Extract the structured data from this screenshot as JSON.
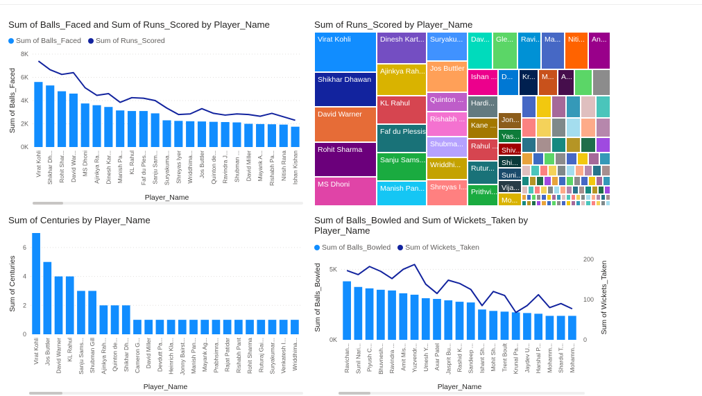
{
  "colors": {
    "bar": "#118DFF",
    "line": "#12239E",
    "grid": "#E1DFDD",
    "axis_text": "#605E5C"
  },
  "chart_data": [
    {
      "id": "c1",
      "type": "bar",
      "title": "Sum of Balls_Faced and Sum of Runs_Scored by Player_Name",
      "legend": [
        "Sum of Balls_Faced",
        "Sum of Runs_Scored"
      ],
      "categories": [
        "Virat Kohli",
        "Shikhar Dh...",
        "Rohit Shar...",
        "David War...",
        "MS Dhoni",
        "Ajinkya Ra...",
        "Dinesh Kar...",
        "Manish Pa...",
        "KL Rahul",
        "Faf du Ples...",
        "Sanju Sam...",
        "Suryakuma...",
        "Shreyas Iyer",
        "Wriddhima...",
        "Jos Buttler",
        "Quinton de...",
        "Ravindra J...",
        "Shubman ...",
        "David Miller",
        "Mayank A...",
        "Rishabh Pa...",
        "Nitish Rana",
        "Ishan Kishan"
      ],
      "series": [
        {
          "name": "Sum of Balls_Faced",
          "kind": "bar",
          "values": [
            5600,
            5300,
            4800,
            4600,
            3750,
            3600,
            3450,
            3150,
            3100,
            3100,
            2900,
            2300,
            2250,
            2220,
            2200,
            2170,
            2150,
            2120,
            2000,
            1980,
            1960,
            1930,
            1750
          ]
        },
        {
          "name": "Sum of Runs_Scored",
          "kind": "line",
          "values": [
            7400,
            6650,
            6250,
            6400,
            5100,
            4450,
            4600,
            3850,
            4250,
            4200,
            4000,
            3350,
            2800,
            2850,
            3300,
            2900,
            2750,
            2850,
            2800,
            2650,
            2900,
            2600,
            2300
          ]
        }
      ],
      "xlabel": "Player_Name",
      "ylabel": "Sum of Balls_Faced",
      "yticks": [
        "0K",
        "2K",
        "4K",
        "6K",
        "8K"
      ],
      "ylim": [
        0,
        8000
      ]
    },
    {
      "id": "c2",
      "type": "treemap",
      "title": "Sum of Runs_Scored by Player_Name",
      "labels": [
        "Virat Kohli",
        "Shikhar Dhawan",
        "David Warner",
        "Rohit Sharma",
        "MS Dhoni",
        "Dinesh Kart...",
        "Ajinkya Rah...",
        "KL Rahul",
        "Faf du Plessis",
        "Sanju Sams...",
        "Manish Pan...",
        "Suryaku...",
        "Jos Buttler",
        "Quinton ...",
        "Rishabh ...",
        "Shubma...",
        "Wriddhi...",
        "Shreyas I...",
        "Dav...",
        "Gle...",
        "Ravi...",
        "Ma...",
        "Niti...",
        "An...",
        "Ishan ...",
        "D...",
        "Kr...",
        "M...",
        "A...",
        "Hardi...",
        "Jon...",
        "Kane ...",
        "Yas...",
        "Shiv...",
        "Rahul ...",
        "Shi...",
        "Rutur...",
        "Suni...",
        "Vija...",
        "Prithvi...",
        "Mo..."
      ]
    },
    {
      "id": "c3",
      "type": "bar",
      "title": "Sum of Centuries by Player_Name",
      "categories": [
        "Virat Kohli",
        "Jos Buttler",
        "David Warner",
        "KL Rahul",
        "Sanju Sams...",
        "Shubman Gill",
        "Ajinkya Rah...",
        "Quinton de...",
        "Shikhar Dh...",
        "Cameron G...",
        "David Miller",
        "Devdutt Pa...",
        "Heinrich Kla...",
        "Jonny Bairst...",
        "Manish Pan...",
        "Mayank Ag...",
        "Prabhsimra...",
        "Rajat Patidar",
        "Rishabh Pant",
        "Rohit Sharma",
        "Ruturaj Gai...",
        "Suryakumar...",
        "Venkatesh I...",
        "Wriddhima..."
      ],
      "values": [
        7,
        5,
        4,
        4,
        3,
        3,
        2,
        2,
        2,
        1,
        1,
        1,
        1,
        1,
        1,
        1,
        1,
        1,
        1,
        1,
        1,
        1,
        1,
        1
      ],
      "xlabel": "Player_Name",
      "ylabel": "Sum of Centuries",
      "yticks": [
        "0",
        "2",
        "4",
        "6"
      ],
      "ylim": [
        0,
        7
      ]
    },
    {
      "id": "c4",
      "type": "bar",
      "title": "Sum of Balls_Bowled and Sum of Wickets_Taken by Player_Name",
      "title_lines": [
        "Sum of Balls_Bowled and Sum of Wickets_Taken by",
        "Player_Name"
      ],
      "legend": [
        "Sum of Balls_Bowled",
        "Sum of Wickets_Taken"
      ],
      "categories": [
        "Ravichan...",
        "Sunil Nari...",
        "Piyush C...",
        "Bhuvnesh...",
        "Ravindra ...",
        "Amit Mis...",
        "Yuzvendr...",
        "Umesh Y...",
        "Axar Patel",
        "Jasprit Bu...",
        "Rashid K...",
        "Sandeep ...",
        "Ishant Sh...",
        "Mohit Sh...",
        "Trent Boult",
        "Krunal Pa...",
        "Jaydev U...",
        "Harshal P...",
        "Mohamm...",
        "Shardul T...",
        "Mohamm..."
      ],
      "series": [
        {
          "name": "Sum of Balls_Bowled",
          "kind": "bar",
          "axis": "left",
          "values": [
            4150,
            3750,
            3650,
            3550,
            3500,
            3300,
            3200,
            2950,
            2900,
            2800,
            2700,
            2650,
            2150,
            2050,
            2000,
            1950,
            1900,
            1850,
            1700,
            1700,
            1700
          ]
        },
        {
          "name": "Sum of Wickets_Taken",
          "kind": "line",
          "axis": "right",
          "values": [
            172,
            162,
            182,
            170,
            152,
            175,
            187,
            138,
            115,
            148,
            140,
            125,
            85,
            120,
            110,
            68,
            85,
            112,
            80,
            90,
            77
          ]
        }
      ],
      "xlabel": "Player_Name",
      "ylabel": "Sum of Balls_Bowled",
      "y2label": "Sum of Wickets_Taken",
      "yticks": [
        "0K",
        "5K"
      ],
      "y2ticks": [
        "0",
        "100",
        "200"
      ],
      "ylim": [
        0,
        6000
      ],
      "y2lim": [
        0,
        210
      ]
    }
  ]
}
